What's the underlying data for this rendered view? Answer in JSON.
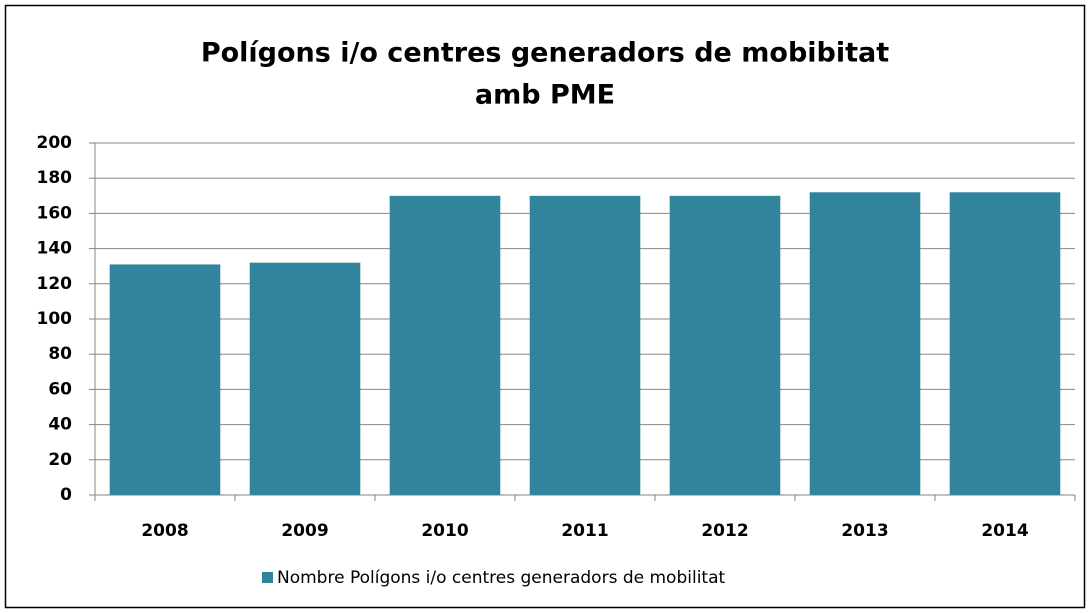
{
  "chart_data": {
    "type": "bar",
    "title": [
      "Polígons i/o centres generadors de mobibitat",
      "amb PME"
    ],
    "categories": [
      "2008",
      "2009",
      "2010",
      "2011",
      "2012",
      "2013",
      "2014"
    ],
    "series": [
      {
        "name": "Nombre Polígons i/o centres generadors de mobilitat",
        "color": "#31849b",
        "values": [
          131,
          132,
          170,
          170,
          170,
          172,
          172
        ]
      }
    ],
    "ylim": [
      0,
      200
    ],
    "yticks": [
      0,
      20,
      40,
      60,
      80,
      100,
      120,
      140,
      160,
      180,
      200
    ],
    "grid": true
  }
}
